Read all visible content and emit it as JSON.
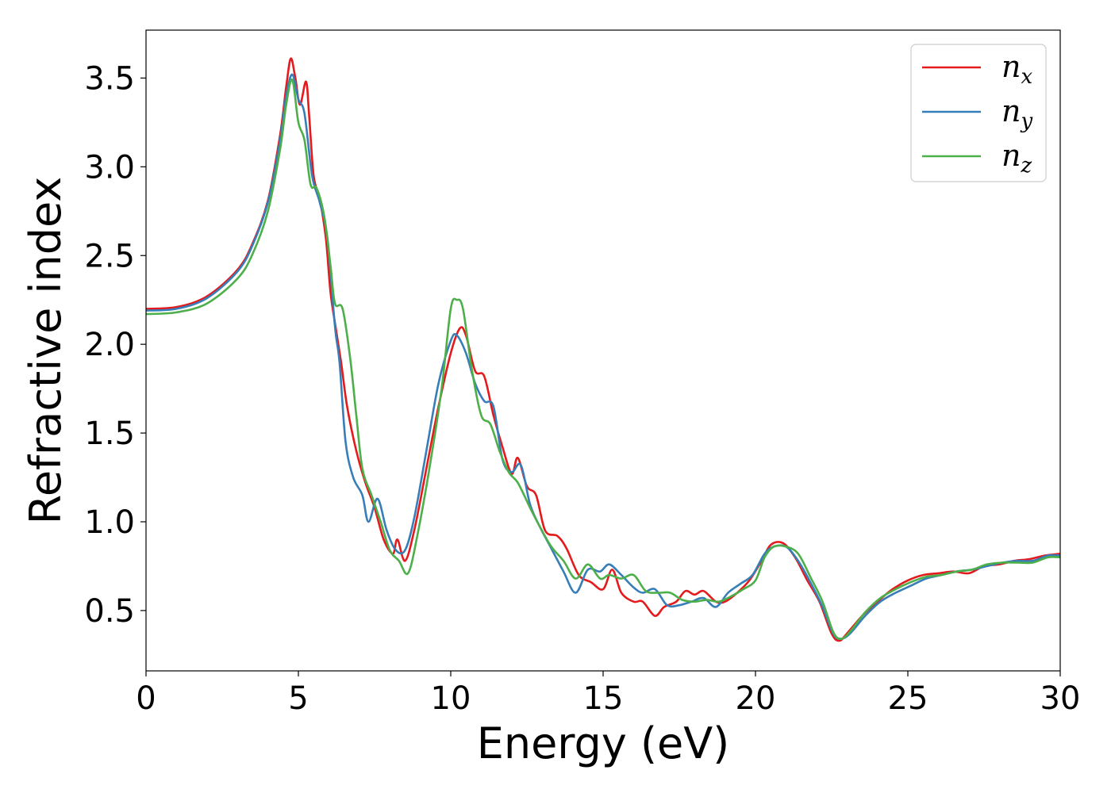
{
  "chart_data": {
    "type": "line",
    "title": "",
    "xlabel": "Energy (eV)",
    "ylabel": "Refractive index",
    "xlim": [
      0,
      30
    ],
    "ylim": [
      0.16,
      3.77
    ],
    "xticks": [
      0,
      5,
      10,
      15,
      20,
      25,
      30
    ],
    "yticks": [
      0.5,
      1.0,
      1.5,
      2.0,
      2.5,
      3.0,
      3.5
    ],
    "xtick_labels": [
      "0",
      "5",
      "10",
      "15",
      "20",
      "25",
      "30"
    ],
    "ytick_labels": [
      "0.5",
      "1.0",
      "1.5",
      "2.0",
      "2.5",
      "3.0",
      "3.5"
    ],
    "grid": false,
    "legend_position": "top-right",
    "series": [
      {
        "name": "n_x",
        "legend_base": "n",
        "legend_sub": "x",
        "color": "#e41a1c",
        "points": [
          [
            0,
            2.2
          ],
          [
            1,
            2.21
          ],
          [
            2,
            2.27
          ],
          [
            3,
            2.42
          ],
          [
            3.5,
            2.57
          ],
          [
            4,
            2.81
          ],
          [
            4.4,
            3.18
          ],
          [
            4.6,
            3.45
          ],
          [
            4.75,
            3.61
          ],
          [
            4.9,
            3.5
          ],
          [
            5.05,
            3.35
          ],
          [
            5.25,
            3.48
          ],
          [
            5.35,
            3.3
          ],
          [
            5.5,
            2.95
          ],
          [
            5.7,
            2.82
          ],
          [
            5.9,
            2.6
          ],
          [
            6.05,
            2.3
          ],
          [
            6.2,
            2.12
          ],
          [
            6.4,
            1.9
          ],
          [
            6.6,
            1.65
          ],
          [
            6.9,
            1.4
          ],
          [
            7.2,
            1.22
          ],
          [
            7.5,
            1.08
          ],
          [
            7.8,
            0.9
          ],
          [
            8.1,
            0.82
          ],
          [
            8.25,
            0.9
          ],
          [
            8.5,
            0.78
          ],
          [
            8.8,
            0.95
          ],
          [
            9.2,
            1.3
          ],
          [
            9.6,
            1.65
          ],
          [
            10,
            1.95
          ],
          [
            10.3,
            2.09
          ],
          [
            10.5,
            2.05
          ],
          [
            10.8,
            1.85
          ],
          [
            11.1,
            1.82
          ],
          [
            11.4,
            1.6
          ],
          [
            11.7,
            1.42
          ],
          [
            12,
            1.27
          ],
          [
            12.2,
            1.36
          ],
          [
            12.5,
            1.2
          ],
          [
            12.8,
            1.15
          ],
          [
            13.1,
            0.95
          ],
          [
            13.5,
            0.92
          ],
          [
            13.8,
            0.85
          ],
          [
            14.2,
            0.7
          ],
          [
            14.6,
            0.66
          ],
          [
            15,
            0.62
          ],
          [
            15.3,
            0.73
          ],
          [
            15.6,
            0.6
          ],
          [
            16,
            0.55
          ],
          [
            16.3,
            0.55
          ],
          [
            16.7,
            0.47
          ],
          [
            17,
            0.52
          ],
          [
            17.4,
            0.55
          ],
          [
            17.7,
            0.61
          ],
          [
            18,
            0.59
          ],
          [
            18.3,
            0.61
          ],
          [
            18.7,
            0.55
          ],
          [
            19,
            0.55
          ],
          [
            19.4,
            0.6
          ],
          [
            19.8,
            0.67
          ],
          [
            20.2,
            0.78
          ],
          [
            20.5,
            0.87
          ],
          [
            20.9,
            0.88
          ],
          [
            21.3,
            0.8
          ],
          [
            21.7,
            0.67
          ],
          [
            22.1,
            0.55
          ],
          [
            22.5,
            0.37
          ],
          [
            22.75,
            0.33
          ],
          [
            23,
            0.37
          ],
          [
            23.5,
            0.47
          ],
          [
            24,
            0.55
          ],
          [
            24.5,
            0.62
          ],
          [
            25,
            0.67
          ],
          [
            25.5,
            0.7
          ],
          [
            26,
            0.71
          ],
          [
            26.5,
            0.72
          ],
          [
            27,
            0.71
          ],
          [
            27.5,
            0.75
          ],
          [
            28,
            0.76
          ],
          [
            28.5,
            0.78
          ],
          [
            29,
            0.79
          ],
          [
            29.5,
            0.81
          ],
          [
            30,
            0.82
          ]
        ]
      },
      {
        "name": "n_y",
        "legend_base": "n",
        "legend_sub": "y",
        "color": "#377eb8",
        "points": [
          [
            0,
            2.19
          ],
          [
            1,
            2.2
          ],
          [
            2,
            2.26
          ],
          [
            3,
            2.41
          ],
          [
            3.5,
            2.56
          ],
          [
            4,
            2.8
          ],
          [
            4.4,
            3.15
          ],
          [
            4.6,
            3.4
          ],
          [
            4.8,
            3.52
          ],
          [
            5.0,
            3.38
          ],
          [
            5.2,
            3.3
          ],
          [
            5.45,
            2.95
          ],
          [
            5.7,
            2.8
          ],
          [
            5.95,
            2.6
          ],
          [
            6.2,
            2.1
          ],
          [
            6.35,
            1.9
          ],
          [
            6.55,
            1.45
          ],
          [
            6.8,
            1.25
          ],
          [
            7.1,
            1.15
          ],
          [
            7.3,
            1.0
          ],
          [
            7.6,
            1.13
          ],
          [
            7.9,
            0.95
          ],
          [
            8.2,
            0.84
          ],
          [
            8.5,
            0.84
          ],
          [
            8.8,
            1.02
          ],
          [
            9.2,
            1.4
          ],
          [
            9.6,
            1.78
          ],
          [
            10,
            2.02
          ],
          [
            10.2,
            2.05
          ],
          [
            10.5,
            1.95
          ],
          [
            10.8,
            1.78
          ],
          [
            11.1,
            1.68
          ],
          [
            11.4,
            1.65
          ],
          [
            11.7,
            1.35
          ],
          [
            12,
            1.28
          ],
          [
            12.3,
            1.32
          ],
          [
            12.6,
            1.1
          ],
          [
            12.9,
            0.98
          ],
          [
            13.3,
            0.85
          ],
          [
            13.7,
            0.72
          ],
          [
            14.1,
            0.6
          ],
          [
            14.5,
            0.73
          ],
          [
            14.9,
            0.72
          ],
          [
            15.2,
            0.76
          ],
          [
            15.6,
            0.7
          ],
          [
            16,
            0.63
          ],
          [
            16.3,
            0.6
          ],
          [
            16.7,
            0.62
          ],
          [
            17.1,
            0.53
          ],
          [
            17.5,
            0.53
          ],
          [
            17.9,
            0.55
          ],
          [
            18.3,
            0.57
          ],
          [
            18.7,
            0.52
          ],
          [
            19.1,
            0.6
          ],
          [
            19.5,
            0.65
          ],
          [
            19.9,
            0.7
          ],
          [
            20.3,
            0.82
          ],
          [
            20.6,
            0.86
          ],
          [
            21,
            0.86
          ],
          [
            21.4,
            0.78
          ],
          [
            21.8,
            0.66
          ],
          [
            22.2,
            0.52
          ],
          [
            22.55,
            0.37
          ],
          [
            22.8,
            0.34
          ],
          [
            23.1,
            0.37
          ],
          [
            23.6,
            0.47
          ],
          [
            24.1,
            0.55
          ],
          [
            24.6,
            0.6
          ],
          [
            25.1,
            0.64
          ],
          [
            25.6,
            0.68
          ],
          [
            26.1,
            0.7
          ],
          [
            26.6,
            0.72
          ],
          [
            27.1,
            0.73
          ],
          [
            27.6,
            0.75
          ],
          [
            28.1,
            0.77
          ],
          [
            28.6,
            0.78
          ],
          [
            29.1,
            0.78
          ],
          [
            29.6,
            0.81
          ],
          [
            30,
            0.81
          ]
        ]
      },
      {
        "name": "n_z",
        "legend_base": "n",
        "legend_sub": "z",
        "color": "#4daf4a",
        "points": [
          [
            0,
            2.17
          ],
          [
            1,
            2.18
          ],
          [
            2,
            2.23
          ],
          [
            3,
            2.37
          ],
          [
            3.5,
            2.51
          ],
          [
            4,
            2.75
          ],
          [
            4.4,
            3.1
          ],
          [
            4.6,
            3.35
          ],
          [
            4.8,
            3.49
          ],
          [
            5.0,
            3.25
          ],
          [
            5.2,
            3.15
          ],
          [
            5.4,
            2.9
          ],
          [
            5.6,
            2.88
          ],
          [
            5.85,
            2.72
          ],
          [
            6.05,
            2.45
          ],
          [
            6.2,
            2.23
          ],
          [
            6.45,
            2.2
          ],
          [
            6.7,
            1.92
          ],
          [
            6.9,
            1.6
          ],
          [
            7.1,
            1.3
          ],
          [
            7.4,
            1.15
          ],
          [
            7.7,
            1.0
          ],
          [
            8.0,
            0.84
          ],
          [
            8.3,
            0.78
          ],
          [
            8.6,
            0.71
          ],
          [
            8.9,
            0.92
          ],
          [
            9.3,
            1.3
          ],
          [
            9.7,
            1.75
          ],
          [
            10,
            2.2
          ],
          [
            10.2,
            2.25
          ],
          [
            10.4,
            2.2
          ],
          [
            10.7,
            1.85
          ],
          [
            11,
            1.6
          ],
          [
            11.3,
            1.55
          ],
          [
            11.6,
            1.4
          ],
          [
            11.9,
            1.28
          ],
          [
            12.2,
            1.22
          ],
          [
            12.6,
            1.08
          ],
          [
            12.9,
            0.98
          ],
          [
            13.3,
            0.86
          ],
          [
            13.7,
            0.78
          ],
          [
            14.1,
            0.68
          ],
          [
            14.5,
            0.76
          ],
          [
            14.9,
            0.68
          ],
          [
            15.2,
            0.7
          ],
          [
            15.6,
            0.68
          ],
          [
            16,
            0.7
          ],
          [
            16.4,
            0.61
          ],
          [
            16.8,
            0.6
          ],
          [
            17.2,
            0.6
          ],
          [
            17.6,
            0.56
          ],
          [
            18,
            0.55
          ],
          [
            18.4,
            0.56
          ],
          [
            18.8,
            0.55
          ],
          [
            19.2,
            0.58
          ],
          [
            19.6,
            0.62
          ],
          [
            20,
            0.67
          ],
          [
            20.3,
            0.8
          ],
          [
            20.6,
            0.86
          ],
          [
            21,
            0.86
          ],
          [
            21.4,
            0.82
          ],
          [
            21.8,
            0.69
          ],
          [
            22.2,
            0.55
          ],
          [
            22.55,
            0.38
          ],
          [
            22.8,
            0.34
          ],
          [
            23.1,
            0.38
          ],
          [
            23.6,
            0.49
          ],
          [
            24.1,
            0.57
          ],
          [
            24.6,
            0.62
          ],
          [
            25.1,
            0.66
          ],
          [
            25.6,
            0.69
          ],
          [
            26.1,
            0.7
          ],
          [
            26.6,
            0.72
          ],
          [
            27.1,
            0.73
          ],
          [
            27.6,
            0.76
          ],
          [
            28.1,
            0.77
          ],
          [
            28.6,
            0.77
          ],
          [
            29.1,
            0.77
          ],
          [
            29.6,
            0.8
          ],
          [
            30,
            0.8
          ]
        ]
      }
    ]
  }
}
